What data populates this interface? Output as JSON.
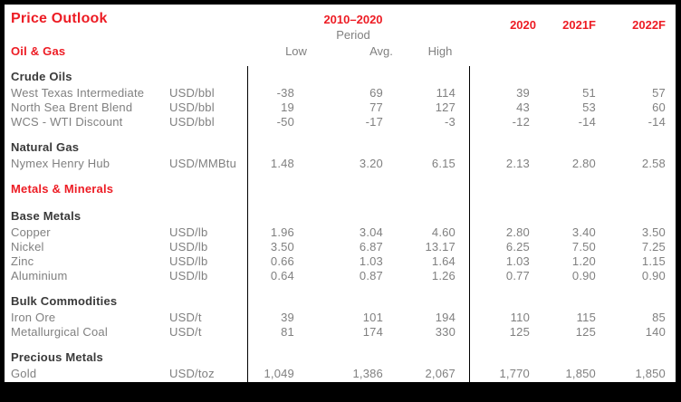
{
  "title": "Price Outlook",
  "colors": {
    "accent_red": "#ED1C24",
    "text_gray": "#808080",
    "text_dark": "#3A3A3A",
    "frame_black": "#000000",
    "background": "#FFFFFF"
  },
  "header": {
    "period_range": "2010–2020",
    "period_word": "Period",
    "low": "Low",
    "avg": "Avg.",
    "high": "High",
    "y2020": "2020",
    "y2021": "2021F",
    "y2022": "2022F"
  },
  "group_oil_gas": "Oil & Gas",
  "rows": [
    {
      "type": "section",
      "name": "Crude Oils"
    },
    {
      "type": "data",
      "name": "West Texas Intermediate",
      "unit": "USD/bbl",
      "low": "-38",
      "avg": "69",
      "high": "114",
      "y2020": "39",
      "y2021": "51",
      "y2022": "57"
    },
    {
      "type": "data",
      "name": "North Sea Brent Blend",
      "unit": "USD/bbl",
      "low": "19",
      "avg": "77",
      "high": "127",
      "y2020": "43",
      "y2021": "53",
      "y2022": "60"
    },
    {
      "type": "data",
      "name": "WCS - WTI Discount",
      "unit": "USD/bbl",
      "low": "-50",
      "avg": "-17",
      "high": "-3",
      "y2020": "-12",
      "y2021": "-14",
      "y2022": "-14"
    },
    {
      "type": "section",
      "name": "Natural Gas"
    },
    {
      "type": "data",
      "name": "Nymex Henry Hub",
      "unit": "USD/MMBtu",
      "low": "1.48",
      "avg": "3.20",
      "high": "6.15",
      "y2020": "2.13",
      "y2021": "2.80",
      "y2022": "2.58"
    },
    {
      "type": "group",
      "name": "Metals & Minerals"
    },
    {
      "type": "section",
      "name": "Base Metals"
    },
    {
      "type": "data",
      "name": "Copper",
      "unit": "USD/lb",
      "low": "1.96",
      "avg": "3.04",
      "high": "4.60",
      "y2020": "2.80",
      "y2021": "3.40",
      "y2022": "3.50"
    },
    {
      "type": "data",
      "name": "Nickel",
      "unit": "USD/lb",
      "low": "3.50",
      "avg": "6.87",
      "high": "13.17",
      "y2020": "6.25",
      "y2021": "7.50",
      "y2022": "7.25"
    },
    {
      "type": "data",
      "name": "Zinc",
      "unit": "USD/lb",
      "low": "0.66",
      "avg": "1.03",
      "high": "1.64",
      "y2020": "1.03",
      "y2021": "1.20",
      "y2022": "1.15"
    },
    {
      "type": "data",
      "name": "Aluminium",
      "unit": "USD/lb",
      "low": "0.64",
      "avg": "0.87",
      "high": "1.26",
      "y2020": "0.77",
      "y2021": "0.90",
      "y2022": "0.90"
    },
    {
      "type": "section",
      "name": "Bulk Commodities"
    },
    {
      "type": "data",
      "name": "Iron Ore",
      "unit": "USD/t",
      "low": "39",
      "avg": "101",
      "high": "194",
      "y2020": "110",
      "y2021": "115",
      "y2022": "85"
    },
    {
      "type": "data",
      "name": "Metallurgical Coal",
      "unit": "USD/t",
      "low": "81",
      "avg": "174",
      "high": "330",
      "y2020": "125",
      "y2021": "125",
      "y2022": "140"
    },
    {
      "type": "section",
      "name": "Precious Metals"
    },
    {
      "type": "data",
      "name": "Gold",
      "unit": "USD/toz",
      "low": "1,049",
      "avg": "1,386",
      "high": "2,067",
      "y2020": "1,770",
      "y2021": "1,850",
      "y2022": "1,850"
    }
  ]
}
